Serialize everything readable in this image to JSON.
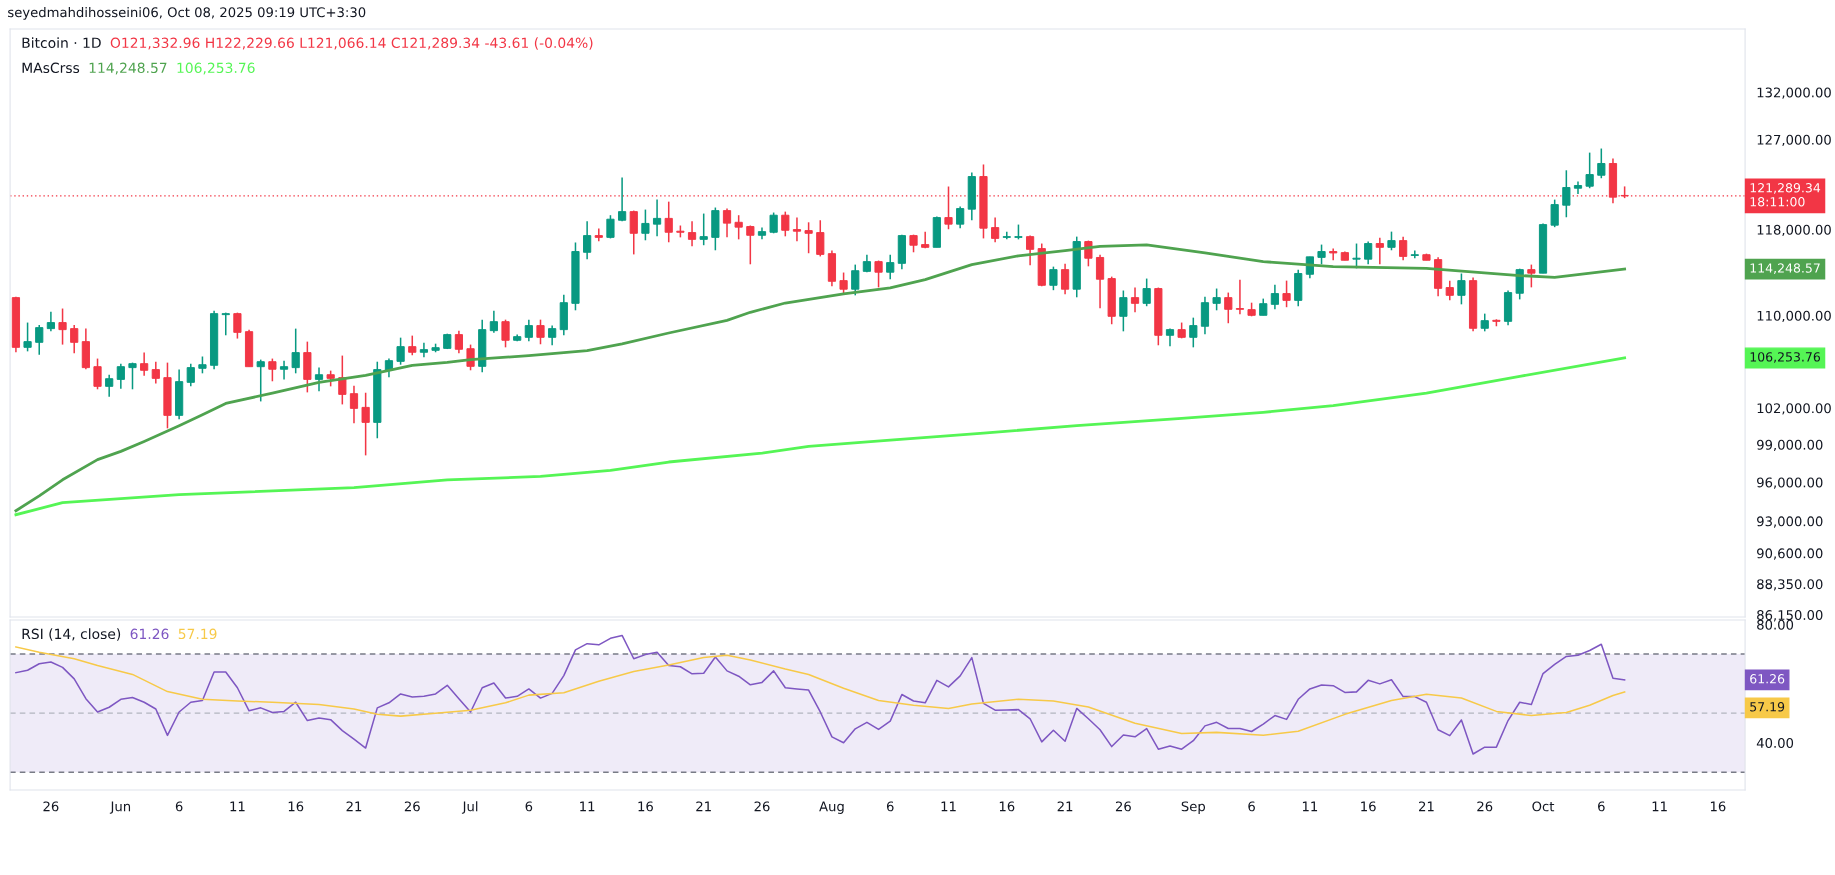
{
  "chart_data": [
    {
      "type": "candlestick",
      "title": "Bitcoin · 1D",
      "subtitle": "O121,332.96 H122,229.66 L121,066.14 C121,289.34 -43.61 (-0.04%)",
      "legend_title": "MAsCrss",
      "log": true,
      "tick_labels": "y",
      "grid": false,
      "legend": false,
      "xlim": [
        "2025-05-22T12:00",
        "2025-10-18T08:00"
      ],
      "ylim": [
        86000,
        139000
      ],
      "yticks": [
        {
          "value": 132000,
          "label": "132,000.00"
        },
        {
          "value": 127000,
          "label": "127,000.00"
        },
        {
          "value": 118000,
          "label": "118,000.00"
        },
        {
          "value": 110000,
          "label": "110,000.00"
        },
        {
          "value": 102000,
          "label": "102,000.00"
        },
        {
          "value": 99000,
          "label": "99,000.00"
        },
        {
          "value": 96000,
          "label": "96,000.00"
        },
        {
          "value": 93000,
          "label": "93,000.00"
        },
        {
          "value": 90600,
          "label": "90,600.00"
        },
        {
          "value": 88350,
          "label": "88,350.00"
        },
        {
          "value": 86150,
          "label": "86,150.00"
        }
      ],
      "x": [
        "2025-05-23",
        "2025-05-24",
        "2025-05-25",
        "2025-05-26",
        "2025-05-27",
        "2025-05-28",
        "2025-05-29",
        "2025-05-30",
        "2025-05-31",
        "2025-06-01",
        "2025-06-02",
        "2025-06-03",
        "2025-06-04",
        "2025-06-05",
        "2025-06-06",
        "2025-06-07",
        "2025-06-08",
        "2025-06-09",
        "2025-06-10",
        "2025-06-11",
        "2025-06-12",
        "2025-06-13",
        "2025-06-14",
        "2025-06-15",
        "2025-06-16",
        "2025-06-17",
        "2025-06-18",
        "2025-06-19",
        "2025-06-20",
        "2025-06-21",
        "2025-06-22",
        "2025-06-23",
        "2025-06-24",
        "2025-06-25",
        "2025-06-26",
        "2025-06-27",
        "2025-06-28",
        "2025-06-29",
        "2025-06-30",
        "2025-07-01",
        "2025-07-02",
        "2025-07-03",
        "2025-07-04",
        "2025-07-05",
        "2025-07-06",
        "2025-07-07",
        "2025-07-08",
        "2025-07-09",
        "2025-07-10",
        "2025-07-11",
        "2025-07-12",
        "2025-07-13",
        "2025-07-14",
        "2025-07-15",
        "2025-07-16",
        "2025-07-17",
        "2025-07-18",
        "2025-07-19",
        "2025-07-20",
        "2025-07-21",
        "2025-07-22",
        "2025-07-23",
        "2025-07-24",
        "2025-07-25",
        "2025-07-26",
        "2025-07-27",
        "2025-07-28",
        "2025-07-29",
        "2025-07-30",
        "2025-07-31",
        "2025-08-01",
        "2025-08-02",
        "2025-08-03",
        "2025-08-04",
        "2025-08-05",
        "2025-08-06",
        "2025-08-07",
        "2025-08-08",
        "2025-08-09",
        "2025-08-10",
        "2025-08-11",
        "2025-08-12",
        "2025-08-13",
        "2025-08-14",
        "2025-08-15",
        "2025-08-16",
        "2025-08-17",
        "2025-08-18",
        "2025-08-19",
        "2025-08-20",
        "2025-08-21",
        "2025-08-22",
        "2025-08-23",
        "2025-08-24",
        "2025-08-25",
        "2025-08-26",
        "2025-08-27",
        "2025-08-28",
        "2025-08-29",
        "2025-08-30",
        "2025-08-31",
        "2025-09-01",
        "2025-09-02",
        "2025-09-03",
        "2025-09-04",
        "2025-09-05",
        "2025-09-06",
        "2025-09-07",
        "2025-09-08",
        "2025-09-09",
        "2025-09-10",
        "2025-09-11",
        "2025-09-12",
        "2025-09-13",
        "2025-09-14",
        "2025-09-15",
        "2025-09-16",
        "2025-09-17",
        "2025-09-18",
        "2025-09-19",
        "2025-09-20",
        "2025-09-21",
        "2025-09-22",
        "2025-09-23",
        "2025-09-24",
        "2025-09-25",
        "2025-09-26",
        "2025-09-27",
        "2025-09-28",
        "2025-09-29",
        "2025-09-30",
        "2025-10-01",
        "2025-10-02",
        "2025-10-03",
        "2025-10-04",
        "2025-10-05",
        "2025-10-06",
        "2025-10-07",
        "2025-10-08"
      ],
      "ohlc": [
        [
          111620,
          111710,
          106750,
          107180
        ],
        [
          107180,
          109370,
          106830,
          107680
        ],
        [
          107620,
          109160,
          106540,
          108920
        ],
        [
          108830,
          110350,
          108590,
          109370
        ],
        [
          109370,
          110630,
          107420,
          108740
        ],
        [
          108830,
          109160,
          106660,
          107620
        ],
        [
          107680,
          108830,
          105280,
          105420
        ],
        [
          105500,
          106200,
          103570,
          103820
        ],
        [
          103820,
          104810,
          102950,
          104470
        ],
        [
          104410,
          105760,
          103620,
          105500
        ],
        [
          105420,
          105850,
          103570,
          105760
        ],
        [
          105760,
          106720,
          104730,
          105190
        ],
        [
          105250,
          105930,
          104070,
          104500
        ],
        [
          104560,
          105850,
          100320,
          101390
        ],
        [
          101390,
          105250,
          101060,
          104220
        ],
        [
          104160,
          105760,
          103820,
          105420
        ],
        [
          105360,
          106380,
          104930,
          105670
        ],
        [
          105620,
          110440,
          105280,
          110170
        ],
        [
          110080,
          110260,
          108240,
          110170
        ],
        [
          110170,
          110260,
          107950,
          108500
        ],
        [
          108560,
          108740,
          105500,
          105500
        ],
        [
          105500,
          106110,
          102550,
          105930
        ],
        [
          105930,
          106200,
          104250,
          105280
        ],
        [
          105280,
          106020,
          104410,
          105500
        ],
        [
          105420,
          108830,
          104930,
          106720
        ],
        [
          106720,
          107680,
          103310,
          104410
        ],
        [
          104410,
          105420,
          103400,
          104810
        ],
        [
          104810,
          105160,
          103820,
          104500
        ],
        [
          104560,
          106460,
          102300,
          103140
        ],
        [
          103200,
          103870,
          100730,
          101970
        ],
        [
          102050,
          103280,
          98130,
          100810
        ],
        [
          100810,
          105930,
          99510,
          105250
        ],
        [
          105190,
          106200,
          104590,
          106020
        ],
        [
          105960,
          108030,
          105670,
          107240
        ],
        [
          107240,
          108210,
          106490,
          106750
        ],
        [
          106750,
          107590,
          106320,
          106980
        ],
        [
          106920,
          107500,
          106750,
          107150
        ],
        [
          107090,
          108380,
          107030,
          108300
        ],
        [
          108300,
          108650,
          106660,
          107010
        ],
        [
          107060,
          107420,
          105190,
          105530
        ],
        [
          105530,
          109630,
          105020,
          108740
        ],
        [
          108650,
          110440,
          108470,
          109450
        ],
        [
          109450,
          109630,
          107180,
          107800
        ],
        [
          107800,
          108300,
          107710,
          108120
        ],
        [
          108060,
          109630,
          107710,
          109100
        ],
        [
          109100,
          109630,
          107450,
          108060
        ],
        [
          108060,
          109100,
          107360,
          108830
        ],
        [
          108740,
          111890,
          108240,
          111160
        ],
        [
          111100,
          116760,
          110470,
          115900
        ],
        [
          115830,
          118800,
          115180,
          117420
        ],
        [
          117420,
          118090,
          116880,
          117250
        ],
        [
          117250,
          119390,
          117150,
          119000
        ],
        [
          118900,
          123120,
          118800,
          119740
        ],
        [
          119740,
          119840,
          115630,
          117640
        ],
        [
          117640,
          119940,
          116970,
          118590
        ],
        [
          118520,
          120920,
          117350,
          119080
        ],
        [
          119080,
          120720,
          116780,
          117740
        ],
        [
          117840,
          118390,
          117250,
          117740
        ],
        [
          117710,
          118800,
          116400,
          117060
        ],
        [
          117060,
          119550,
          116500,
          117320
        ],
        [
          117250,
          120140,
          116020,
          119840
        ],
        [
          119840,
          120040,
          117250,
          118620
        ],
        [
          118700,
          119390,
          117060,
          118230
        ],
        [
          118290,
          118390,
          114700,
          117450
        ],
        [
          117450,
          118190,
          117060,
          117800
        ],
        [
          117740,
          119650,
          117640,
          119390
        ],
        [
          119390,
          119740,
          117350,
          117930
        ],
        [
          118000,
          119160,
          116880,
          117840
        ],
        [
          117900,
          118700,
          115740,
          117640
        ],
        [
          117710,
          118900,
          115440,
          115630
        ],
        [
          115700,
          115990,
          112660,
          113120
        ],
        [
          113180,
          113930,
          111930,
          112390
        ],
        [
          112390,
          114670,
          111830,
          114100
        ],
        [
          114040,
          115600,
          113960,
          114950
        ],
        [
          114950,
          115050,
          112560,
          113960
        ],
        [
          113960,
          115600,
          113310,
          114860
        ],
        [
          114790,
          117510,
          114230,
          117420
        ],
        [
          117420,
          117510,
          115830,
          116500
        ],
        [
          116560,
          117800,
          116210,
          116300
        ],
        [
          116300,
          119260,
          116300,
          119160
        ],
        [
          119160,
          122220,
          118030,
          118520
        ],
        [
          118520,
          120240,
          118130,
          120040
        ],
        [
          119980,
          123630,
          118900,
          123220
        ],
        [
          123220,
          124440,
          117150,
          118130
        ],
        [
          118190,
          119160,
          116780,
          117150
        ],
        [
          117250,
          117800,
          117060,
          117320
        ],
        [
          117250,
          118480,
          117060,
          117320
        ],
        [
          117320,
          117420,
          114610,
          116110
        ],
        [
          116180,
          116660,
          112660,
          112750
        ],
        [
          112750,
          114480,
          112300,
          114200
        ],
        [
          114200,
          114760,
          111930,
          112390
        ],
        [
          112390,
          117320,
          111650,
          116850
        ],
        [
          116850,
          116940,
          114510,
          115270
        ],
        [
          115340,
          115600,
          110660,
          113310
        ],
        [
          113370,
          113550,
          109220,
          109930
        ],
        [
          109930,
          112270,
          108590,
          111620
        ],
        [
          111620,
          112540,
          110290,
          111100
        ],
        [
          111100,
          113370,
          110840,
          112450
        ],
        [
          112450,
          112540,
          107360,
          108240
        ],
        [
          108240,
          108830,
          107270,
          108740
        ],
        [
          108740,
          109370,
          107970,
          108060
        ],
        [
          108060,
          109810,
          107180,
          109100
        ],
        [
          109040,
          111710,
          108330,
          111160
        ],
        [
          111100,
          112450,
          110470,
          111620
        ],
        [
          111620,
          112080,
          109310,
          110560
        ],
        [
          110630,
          113270,
          110110,
          110560
        ],
        [
          110530,
          111160,
          109930,
          110020
        ],
        [
          110020,
          111530,
          110020,
          111070
        ],
        [
          111010,
          112810,
          110560,
          111990
        ],
        [
          111990,
          113180,
          110750,
          111370
        ],
        [
          111370,
          114200,
          110840,
          113840
        ],
        [
          113770,
          115400,
          113400,
          115400
        ],
        [
          115350,
          116560,
          114700,
          115900
        ],
        [
          115900,
          116180,
          115080,
          115770
        ],
        [
          115800,
          115900,
          115080,
          115080
        ],
        [
          115180,
          116660,
          114320,
          115270
        ],
        [
          115180,
          116850,
          114700,
          116660
        ],
        [
          116660,
          117220,
          114700,
          116300
        ],
        [
          116300,
          117800,
          116020,
          116940
        ],
        [
          116940,
          117320,
          115080,
          115440
        ],
        [
          115530,
          115990,
          115270,
          115600
        ],
        [
          115600,
          115700,
          115080,
          115080
        ],
        [
          115140,
          115370,
          111740,
          112470
        ],
        [
          112540,
          113180,
          111370,
          111830
        ],
        [
          111830,
          113840,
          111010,
          113180
        ],
        [
          113180,
          113460,
          108590,
          108860
        ],
        [
          108860,
          110170,
          108590,
          109540
        ],
        [
          109570,
          109660,
          109040,
          109480
        ],
        [
          109480,
          112270,
          109130,
          112080
        ],
        [
          112020,
          114290,
          111460,
          114200
        ],
        [
          114200,
          114670,
          112560,
          113870
        ],
        [
          113870,
          118590,
          113870,
          118480
        ],
        [
          118420,
          120920,
          118230,
          120430
        ],
        [
          120370,
          123850,
          119190,
          122120
        ],
        [
          122050,
          122720,
          121480,
          122320
        ],
        [
          122250,
          125650,
          122050,
          123420
        ],
        [
          123350,
          126070,
          123050,
          124540
        ],
        [
          124540,
          125060,
          120560,
          121160
        ],
        [
          121332.96,
          122229.66,
          121066.14,
          121289.34
        ]
      ],
      "series": [
        {
          "type": "line",
          "color": "#4fa34f",
          "x": [
            "2025-05-23",
            "2025-05-25",
            "2025-05-27",
            "2025-05-30",
            "2025-06-01",
            "2025-06-03",
            "2025-06-06",
            "2025-06-08",
            "2025-06-10",
            "2025-06-14",
            "2025-06-18",
            "2025-06-22",
            "2025-06-26",
            "2025-06-29",
            "2025-07-01",
            "2025-07-06",
            "2025-07-11",
            "2025-07-14",
            "2025-07-18",
            "2025-07-23",
            "2025-07-25",
            "2025-07-28",
            "2025-08-02",
            "2025-08-06",
            "2025-08-09",
            "2025-08-13",
            "2025-08-17",
            "2025-08-21",
            "2025-08-24",
            "2025-08-28",
            "2025-09-02",
            "2025-09-07",
            "2025-09-13",
            "2025-09-21",
            "2025-09-29",
            "2025-10-02",
            "2025-10-08"
          ],
          "values": [
            93790,
            94940,
            96190,
            97790,
            98450,
            99250,
            100530,
            101440,
            102380,
            103250,
            104160,
            104760,
            105620,
            105870,
            106110,
            106460,
            106890,
            107480,
            108440,
            109570,
            110290,
            111130,
            111960,
            112510,
            113275,
            114670,
            115500,
            115990,
            116400,
            116530,
            115770,
            114950,
            114480,
            114320,
            113650,
            113490,
            114248.57
          ]
        },
        {
          "type": "line",
          "color": "#55f555",
          "x": [
            "2025-05-23",
            "2025-05-27",
            "2025-06-06",
            "2025-06-21",
            "2025-06-29",
            "2025-07-07",
            "2025-07-13",
            "2025-07-18",
            "2025-07-26",
            "2025-07-30",
            "2025-08-06",
            "2025-08-14",
            "2025-08-22",
            "2025-08-31",
            "2025-09-07",
            "2025-09-13",
            "2025-09-21",
            "2025-09-29",
            "2025-10-08"
          ],
          "values": [
            93490,
            94410,
            95030,
            95580,
            96190,
            96460,
            96930,
            97600,
            98310,
            98850,
            99350,
            99930,
            100540,
            101140,
            101640,
            102190,
            103250,
            104670,
            106253.76
          ]
        }
      ],
      "ref_lines": [
        {
          "axis": "y",
          "value": 121289.34,
          "color": "#f23645",
          "line_style": "dotted"
        }
      ],
      "annotations": [
        "seyedmahdihosseini06, Oct 08, 2025 09:19 UTC+3:30",
        "114,248.57",
        "106,253.76",
        "121,289.34\n18:11:00",
        "114,248.57",
        "106,253.76"
      ]
    },
    {
      "type": "line",
      "title": "RSI (14, close)",
      "grid": false,
      "legend": false,
      "xlim": [
        "2025-05-22T12:00",
        "2025-10-18T08:00"
      ],
      "ylim": [
        24,
        81.5
      ],
      "yticks": [
        {
          "value": 80,
          "label": "80.00"
        },
        {
          "value": 40,
          "label": "40.00"
        }
      ],
      "xticks": [
        {
          "value": "2025-05-26",
          "label": "26"
        },
        {
          "value": "2025-06-01",
          "label": "Jun"
        },
        {
          "value": "2025-06-06",
          "label": "6"
        },
        {
          "value": "2025-06-11",
          "label": "11"
        },
        {
          "value": "2025-06-16",
          "label": "16"
        },
        {
          "value": "2025-06-21",
          "label": "21"
        },
        {
          "value": "2025-06-26",
          "label": "26"
        },
        {
          "value": "2025-07-01",
          "label": "Jul"
        },
        {
          "value": "2025-07-06",
          "label": "6"
        },
        {
          "value": "2025-07-11",
          "label": "11"
        },
        {
          "value": "2025-07-16",
          "label": "16"
        },
        {
          "value": "2025-07-21",
          "label": "21"
        },
        {
          "value": "2025-07-26",
          "label": "26"
        },
        {
          "value": "2025-08-01",
          "label": "Aug"
        },
        {
          "value": "2025-08-06",
          "label": "6"
        },
        {
          "value": "2025-08-11",
          "label": "11"
        },
        {
          "value": "2025-08-16",
          "label": "16"
        },
        {
          "value": "2025-08-21",
          "label": "21"
        },
        {
          "value": "2025-08-26",
          "label": "26"
        },
        {
          "value": "2025-09-01",
          "label": "Sep"
        },
        {
          "value": "2025-09-06",
          "label": "6"
        },
        {
          "value": "2025-09-11",
          "label": "11"
        },
        {
          "value": "2025-09-16",
          "label": "16"
        },
        {
          "value": "2025-09-21",
          "label": "21"
        },
        {
          "value": "2025-09-26",
          "label": "26"
        },
        {
          "value": "2025-10-01",
          "label": "Oct"
        },
        {
          "value": "2025-10-06",
          "label": "6"
        },
        {
          "value": "2025-10-11",
          "label": "11"
        },
        {
          "value": "2025-10-16",
          "label": "16"
        }
      ],
      "x": [
        "2025-05-23",
        "2025-05-24",
        "2025-05-25",
        "2025-05-26",
        "2025-05-27",
        "2025-05-28",
        "2025-05-29",
        "2025-05-30",
        "2025-05-31",
        "2025-06-01",
        "2025-06-02",
        "2025-06-03",
        "2025-06-04",
        "2025-06-05",
        "2025-06-06",
        "2025-06-07",
        "2025-06-08",
        "2025-06-09",
        "2025-06-10",
        "2025-06-11",
        "2025-06-12",
        "2025-06-13",
        "2025-06-14",
        "2025-06-15",
        "2025-06-16",
        "2025-06-17",
        "2025-06-18",
        "2025-06-19",
        "2025-06-20",
        "2025-06-21",
        "2025-06-22",
        "2025-06-23",
        "2025-06-24",
        "2025-06-25",
        "2025-06-26",
        "2025-06-27",
        "2025-06-28",
        "2025-06-29",
        "2025-06-30",
        "2025-07-01",
        "2025-07-02",
        "2025-07-03",
        "2025-07-04",
        "2025-07-05",
        "2025-07-06",
        "2025-07-07",
        "2025-07-08",
        "2025-07-09",
        "2025-07-10",
        "2025-07-11",
        "2025-07-12",
        "2025-07-13",
        "2025-07-14",
        "2025-07-15",
        "2025-07-16",
        "2025-07-17",
        "2025-07-18",
        "2025-07-19",
        "2025-07-20",
        "2025-07-21",
        "2025-07-22",
        "2025-07-23",
        "2025-07-24",
        "2025-07-25",
        "2025-07-26",
        "2025-07-27",
        "2025-07-28",
        "2025-07-29",
        "2025-07-30",
        "2025-07-31",
        "2025-08-01",
        "2025-08-02",
        "2025-08-03",
        "2025-08-04",
        "2025-08-05",
        "2025-08-06",
        "2025-08-07",
        "2025-08-08",
        "2025-08-09",
        "2025-08-10",
        "2025-08-11",
        "2025-08-12",
        "2025-08-13",
        "2025-08-14",
        "2025-08-15",
        "2025-08-16",
        "2025-08-17",
        "2025-08-18",
        "2025-08-19",
        "2025-08-20",
        "2025-08-21",
        "2025-08-22",
        "2025-08-23",
        "2025-08-24",
        "2025-08-25",
        "2025-08-26",
        "2025-08-27",
        "2025-08-28",
        "2025-08-29",
        "2025-08-30",
        "2025-08-31",
        "2025-09-01",
        "2025-09-02",
        "2025-09-03",
        "2025-09-04",
        "2025-09-05",
        "2025-09-06",
        "2025-09-07",
        "2025-09-08",
        "2025-09-09",
        "2025-09-10",
        "2025-09-11",
        "2025-09-12",
        "2025-09-13",
        "2025-09-14",
        "2025-09-15",
        "2025-09-16",
        "2025-09-17",
        "2025-09-18",
        "2025-09-19",
        "2025-09-20",
        "2025-09-21",
        "2025-09-22",
        "2025-09-23",
        "2025-09-24",
        "2025-09-25",
        "2025-09-26",
        "2025-09-27",
        "2025-09-28",
        "2025-09-29",
        "2025-09-30",
        "2025-10-01",
        "2025-10-02",
        "2025-10-03",
        "2025-10-04",
        "2025-10-05",
        "2025-10-06",
        "2025-10-07",
        "2025-10-08"
      ],
      "series": [
        {
          "color": "#7e57c2",
          "values": [
            63.7,
            64.5,
            66.7,
            67.3,
            65.5,
            61.6,
            54.9,
            50.4,
            52.0,
            54.7,
            55.3,
            53.7,
            51.4,
            42.5,
            50.4,
            53.7,
            54.3,
            63.9,
            63.9,
            58.6,
            50.8,
            51.8,
            50.2,
            50.6,
            53.7,
            47.5,
            48.4,
            47.8,
            44.1,
            41.2,
            38.2,
            51.8,
            53.5,
            56.5,
            55.5,
            55.7,
            56.5,
            59.4,
            54.9,
            50.4,
            58.6,
            60.2,
            55.1,
            55.7,
            58.2,
            55.1,
            56.7,
            62.7,
            71.4,
            73.5,
            73.1,
            75.3,
            76.3,
            68.4,
            69.8,
            70.6,
            66.1,
            65.7,
            63.3,
            63.5,
            69.0,
            64.3,
            62.5,
            59.6,
            60.4,
            64.3,
            58.6,
            58.2,
            57.8,
            50.4,
            42.0,
            40.0,
            44.7,
            46.9,
            44.5,
            47.3,
            56.3,
            54.1,
            53.5,
            61.1,
            58.9,
            62.6,
            68.8,
            53.3,
            51.0,
            51.1,
            51.2,
            48.1,
            40.3,
            44.2,
            40.5,
            51.6,
            48.1,
            44.4,
            38.7,
            42.6,
            42.0,
            44.8,
            37.8,
            38.9,
            37.8,
            40.7,
            45.7,
            46.9,
            44.8,
            44.8,
            43.8,
            46.3,
            49.2,
            47.9,
            54.7,
            58.2,
            59.5,
            59.3,
            57.0,
            57.2,
            61.1,
            59.9,
            61.3,
            55.6,
            55.6,
            53.7,
            44.4,
            42.4,
            47.7,
            36.2,
            38.5,
            38.5,
            47.5,
            53.7,
            52.9,
            63.4,
            66.5,
            69.2,
            69.6,
            71.2,
            73.3,
            61.8,
            61.26
          ]
        },
        {
          "color": "#f7c948",
          "x": [
            "2025-05-23",
            "2025-05-25",
            "2025-05-28",
            "2025-05-30",
            "2025-06-02",
            "2025-06-05",
            "2025-06-08",
            "2025-06-11",
            "2025-06-14",
            "2025-06-18",
            "2025-06-21",
            "2025-06-23",
            "2025-06-25",
            "2025-06-28",
            "2025-07-01",
            "2025-07-04",
            "2025-07-06",
            "2025-07-09",
            "2025-07-12",
            "2025-07-15",
            "2025-07-18",
            "2025-07-21",
            "2025-07-23",
            "2025-07-25",
            "2025-07-28",
            "2025-07-30",
            "2025-08-02",
            "2025-08-05",
            "2025-08-08",
            "2025-08-11",
            "2025-08-13",
            "2025-08-17",
            "2025-08-20",
            "2025-08-23",
            "2025-08-27",
            "2025-08-31",
            "2025-09-03",
            "2025-09-07",
            "2025-09-10",
            "2025-09-14",
            "2025-09-18",
            "2025-09-21",
            "2025-09-24",
            "2025-09-27",
            "2025-09-30",
            "2025-10-03",
            "2025-10-05",
            "2025-10-07",
            "2025-10-08"
          ],
          "values": [
            72.4,
            70.6,
            68.4,
            66.1,
            63.1,
            57.3,
            54.7,
            54.1,
            53.7,
            52.9,
            51.4,
            49.6,
            49.0,
            50.0,
            51.0,
            53.5,
            56.1,
            56.9,
            60.8,
            64.1,
            66.3,
            68.8,
            69.6,
            68.0,
            64.9,
            63.1,
            58.4,
            54.3,
            52.7,
            51.6,
            53.1,
            54.7,
            54.1,
            52.1,
            46.6,
            43.1,
            43.5,
            42.5,
            43.9,
            49.6,
            54.3,
            56.4,
            55.1,
            50.6,
            49.2,
            50.2,
            52.7,
            56.0,
            57.19
          ]
        }
      ],
      "ref_lines": [
        {
          "axis": "y",
          "value": 70,
          "color": "#787b86",
          "line_style": "dashed"
        },
        {
          "axis": "y",
          "value": 50,
          "color": "#b2b5be",
          "line_style": "dashed"
        },
        {
          "axis": "y",
          "value": 30,
          "color": "#787b86",
          "line_style": "dashed"
        }
      ],
      "bands": [
        {
          "axis": "y",
          "from": 30,
          "to": 70,
          "color": "#efebf8"
        }
      ],
      "annotations": [
        "61.26",
        "57.19",
        "61.26",
        "57.19"
      ]
    }
  ]
}
